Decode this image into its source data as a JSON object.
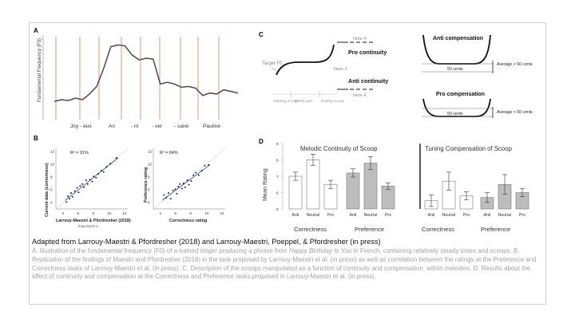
{
  "panel_a": {
    "letter": "A",
    "ylabel": "Fundamental Frequency (F0)",
    "syllables": [
      "Joy - eux",
      "An",
      "- ni",
      "- ver",
      "- saire",
      "Pauline"
    ]
  },
  "panel_b": {
    "letter": "B",
    "left": {
      "ylabel": "Current data (correctness)",
      "xlabel": "Larrouy-Maestri & Pfordresher (2018)",
      "xsub": "Experiment 1",
      "r2": "R² = 91%",
      "ticks": [
        "4",
        "6",
        "8",
        "10",
        "12"
      ]
    },
    "right": {
      "ylabel": "Preference rating",
      "xlabel": "Correctness rating",
      "r2": "R² = 84%",
      "ticks": [
        "4",
        "6",
        "8",
        "10",
        "12"
      ]
    }
  },
  "panel_c": {
    "letter": "C",
    "target_label": "Target F0",
    "note4_top": "Note 4",
    "note3": "Note 3",
    "note4_bottom": "Note 4",
    "pro_continuity": "Pro continuity",
    "anti_continuity": "Anti continuity",
    "segments": [
      "Starting scoop",
      "Stable part",
      "Ending scoop"
    ],
    "anti_comp": {
      "title": "Anti compensation",
      "cents": "50 cents",
      "avg": "Average > 50 cents"
    },
    "pro_comp": {
      "title": "Pro compensation",
      "cents": "50 cents",
      "avg": "Average < 50 cents"
    }
  },
  "panel_d": {
    "letter": "D",
    "ylabel": "Mean Rating",
    "title_left": "Melodic Continuity of Scoop",
    "title_right": "Tuning Compensation of Scoop",
    "group_labels": [
      "Correctness",
      "Preference",
      "Correctness",
      "Preference"
    ],
    "bar_labels": [
      "Anti",
      "Neutral",
      "Pro"
    ]
  },
  "caption": {
    "title": "Adapted from Larrouy-Maestri & Pfordresher (2018) and Larrouy-Maestri, Poeppel, & Pfordresher (in press)",
    "a_pre": "A. Illustration of the fundamental frequency (F0) of a trained singer producing a phrase from ",
    "a_italic": "Happy Birthday to You",
    "a_post": " in French, containing relatively steady tones and scoops. B. Replication of the findings of Maestri and Pfordresher (2018) in the task proposed by Larrouy-Maestri et al. (in press) as well as correlation between the ratings at the Preference and Correctness tasks of Larrouy-Maestri et al. (in press). C. Description of the scoops manipulated as a function of continuity and compensation, within melodies. D. Results about the effect of continuity and compensation at the Correctness and Preference tasks proposed in Larrouy-Maestri et al. (in press)."
  },
  "chart_data": [
    {
      "type": "line",
      "title": "",
      "xlabel": "",
      "ylabel": "Fundamental Frequency (F0)",
      "series": [
        {
          "values": [
            0.22,
            0.24,
            0.23,
            0.26,
            0.24,
            0.31,
            0.4,
            0.62,
            0.88,
            0.9,
            0.89,
            0.78,
            0.72,
            0.74,
            0.73,
            0.43,
            0.45,
            0.43,
            0.39,
            0.4,
            0.38,
            0.29,
            0.32,
            0.31,
            0.36,
            0.34,
            0.32
          ]
        }
      ]
    },
    {
      "type": "scatter",
      "title": "",
      "xlabel": "Larrouy-Maestri & Pfordresher (2018)",
      "ylabel": "Current data (correctness)",
      "xlim": [
        3,
        12.5
      ],
      "ylim": [
        3,
        12.5
      ],
      "series": [
        {
          "x": [
            4.4,
            4.6,
            4.8,
            5.0,
            5.2,
            5.5,
            5.8,
            6.0,
            6.2,
            6.5,
            6.7,
            7.0,
            7.2,
            7.5,
            7.8,
            8.0,
            8.3,
            8.6,
            9.0,
            9.3,
            9.7,
            10.2,
            11.0
          ],
          "y": [
            4.1,
            5.0,
            4.6,
            5.5,
            4.9,
            5.8,
            6.3,
            5.6,
            6.6,
            6.9,
            6.4,
            7.5,
            6.9,
            7.6,
            7.3,
            8.1,
            7.9,
            8.5,
            9.0,
            8.8,
            9.6,
            10.1,
            11.0
          ]
        }
      ]
    },
    {
      "type": "scatter",
      "title": "",
      "xlabel": "Correctness rating",
      "ylabel": "Preference rating",
      "xlim": [
        3,
        12.5
      ],
      "ylim": [
        3,
        12.5
      ],
      "series": [
        {
          "x": [
            4.4,
            4.7,
            5.0,
            5.3,
            5.6,
            5.9,
            6.1,
            6.3,
            6.5,
            6.8,
            7.0,
            7.2,
            7.5,
            7.7,
            8.0,
            8.3,
            8.6,
            9.0,
            9.4,
            9.8,
            10.3
          ],
          "y": [
            5.2,
            4.8,
            5.5,
            4.6,
            5.9,
            6.1,
            5.4,
            6.5,
            6.9,
            6.2,
            7.0,
            6.4,
            7.5,
            6.8,
            7.4,
            8.3,
            8.7,
            8.3,
            9.0,
            9.8,
            9.9
          ]
        }
      ]
    },
    {
      "type": "bar",
      "title": "",
      "ylabel": "Mean Rating",
      "ylim": [
        5,
        9
      ],
      "yticks": [
        5,
        6,
        7,
        8,
        9
      ],
      "groups": [
        {
          "label": "Correctness",
          "panel": "Melodic Continuity of Scoop",
          "categories": [
            "Anti",
            "Neutral",
            "Pro"
          ],
          "values": [
            7.0,
            8.0,
            6.5
          ],
          "errors": [
            0.25,
            0.35,
            0.25
          ],
          "fill": "#ffffff"
        },
        {
          "label": "Preference",
          "panel": "Melodic Continuity of Scoop",
          "categories": [
            "Anti",
            "Neutral",
            "Pro"
          ],
          "values": [
            7.2,
            7.8,
            6.4
          ],
          "errors": [
            0.25,
            0.4,
            0.2
          ],
          "fill": "#bdbdbd"
        },
        {
          "label": "Correctness",
          "panel": "Tuning Compensation of Scoop",
          "categories": [
            "Anti",
            "Neutral",
            "Pro"
          ],
          "values": [
            5.5,
            6.7,
            5.8
          ],
          "errors": [
            0.35,
            0.55,
            0.25
          ],
          "fill": "#ffffff"
        },
        {
          "label": "Preference",
          "panel": "Tuning Compensation of Scoop",
          "categories": [
            "Anti",
            "Neutral",
            "Pro"
          ],
          "values": [
            5.7,
            6.5,
            6.0
          ],
          "errors": [
            0.3,
            0.6,
            0.25
          ],
          "fill": "#bdbdbd"
        }
      ]
    }
  ]
}
